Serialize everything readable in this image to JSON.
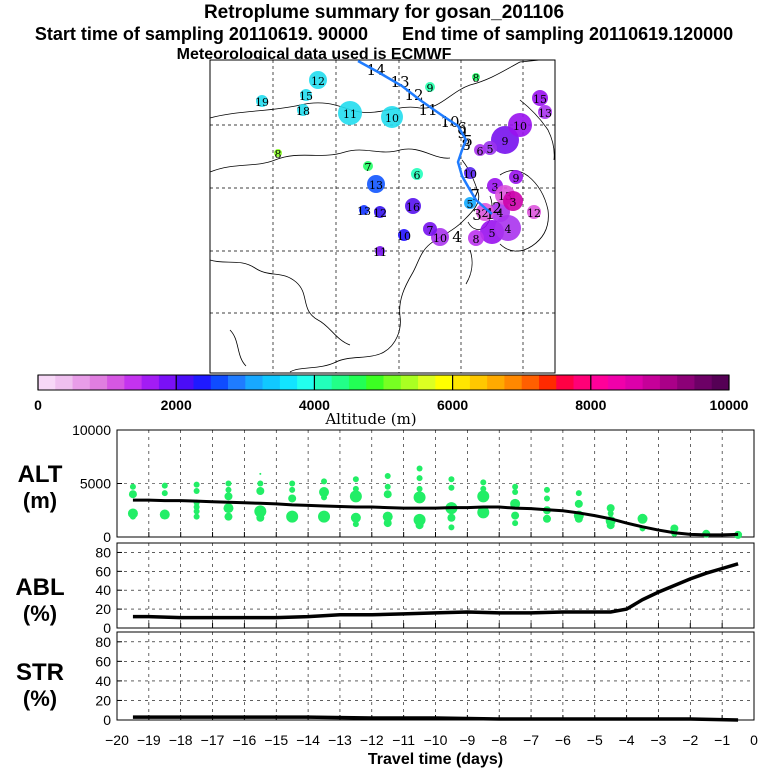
{
  "header": {
    "title": "Retroplume summary for gosan_201106",
    "start_label": "Start time of sampling 20110619. 90000",
    "end_label": "End time of sampling 20110619.120000",
    "met_label": "Meteorological data used is ECMWF"
  },
  "colorbar": {
    "label": "Altitude (m)",
    "ticks": [
      "0",
      "2000",
      "4000",
      "6000",
      "8000",
      "10000"
    ],
    "colors": [
      "#f7d8f7",
      "#efc0ef",
      "#e89de8",
      "#e07ee0",
      "#d657e3",
      "#c433ef",
      "#a31cf4",
      "#7a10f7",
      "#4b0df7",
      "#1f1aff",
      "#0f4cff",
      "#1f7cff",
      "#18a8ff",
      "#11c8ff",
      "#12e4ff",
      "#22ffee",
      "#22ffbb",
      "#22ff88",
      "#22ff55",
      "#3cff22",
      "#77ff22",
      "#aaff22",
      "#ddff22",
      "#ffff00",
      "#ffe600",
      "#ffc800",
      "#ffaa00",
      "#ff8800",
      "#ff5f00",
      "#ff2a00",
      "#ff0044",
      "#ff0077",
      "#ff0099",
      "#f000aa",
      "#dd00aa",
      "#c60099",
      "#aa0088",
      "#8c0077",
      "#6d0066",
      "#550055"
    ]
  },
  "map": {
    "labels": [
      {
        "t": "14",
        "c": "#000000",
        "s": 0
      },
      {
        "t": "13",
        "c": "#000000",
        "s": 0
      },
      {
        "t": "12",
        "c": "#000000",
        "s": 0
      },
      {
        "t": "11",
        "c": "#000000",
        "s": 0
      },
      {
        "t": "10",
        "c": "#000000",
        "s": 0
      },
      {
        "t": "9",
        "c": "#000000",
        "s": 0
      },
      {
        "t": "8",
        "c": "#000000",
        "s": 0
      },
      {
        "t": "12",
        "c": "#22ddee",
        "s": 1
      },
      {
        "t": "15",
        "c": "#22ddee",
        "s": 1
      },
      {
        "t": "19",
        "c": "#22ddee",
        "s": 1
      },
      {
        "t": "18",
        "c": "#22ddee",
        "s": 1
      },
      {
        "t": "11",
        "c": "#22ddee",
        "s": 1
      },
      {
        "t": "10",
        "c": "#22ddee",
        "s": 1
      },
      {
        "t": "9",
        "c": "#22ffaa",
        "s": 1
      },
      {
        "t": "8",
        "c": "#22ff66",
        "s": 1
      },
      {
        "t": "8",
        "c": "#88ff22",
        "s": 1
      },
      {
        "t": "7",
        "c": "#22ff66",
        "s": 1
      },
      {
        "t": "6",
        "c": "#22ffbb",
        "s": 1
      },
      {
        "t": "13",
        "c": "#1155ff",
        "s": 1
      },
      {
        "t": "13",
        "c": "#1133ff",
        "s": 1
      },
      {
        "t": "12",
        "c": "#3311ee",
        "s": 1
      },
      {
        "t": "16",
        "c": "#5511ee",
        "s": 1
      },
      {
        "t": "10",
        "c": "#2211ff",
        "s": 1
      },
      {
        "t": "11",
        "c": "#7711ee",
        "s": 1
      },
      {
        "t": "10",
        "c": "#aa33ee",
        "s": 1
      },
      {
        "t": "7",
        "c": "#7711ee",
        "s": 1
      },
      {
        "t": "5",
        "c": "#11aaff",
        "s": 1
      },
      {
        "t": "3",
        "c": "#9911ee",
        "s": 1
      },
      {
        "t": "4",
        "c": "#aa33ee",
        "s": 1
      },
      {
        "t": "5",
        "c": "#9911ee",
        "s": 1
      },
      {
        "t": "9",
        "c": "#7711ee",
        "s": 1
      },
      {
        "t": "10",
        "c": "#9911ee",
        "s": 1
      },
      {
        "t": "13",
        "c": "#dd55dd",
        "s": 1
      },
      {
        "t": "3",
        "c": "#cc00aa",
        "s": 1
      },
      {
        "t": "12",
        "c": "#dd55dd",
        "s": 1
      },
      {
        "t": "4",
        "c": "#aa33ee",
        "s": 1
      },
      {
        "t": "8",
        "c": "#bb33ee",
        "s": 1
      },
      {
        "t": "5",
        "c": "#9933ee",
        "s": 1
      },
      {
        "t": "6",
        "c": "#aa33ee",
        "s": 1
      },
      {
        "t": "9",
        "c": "#9911ee",
        "s": 1
      },
      {
        "t": "10",
        "c": "#5522ee",
        "s": 1
      },
      {
        "t": "15",
        "c": "#9911ee",
        "s": 1
      },
      {
        "t": "13",
        "c": "#aa33ee",
        "s": 1
      },
      {
        "t": "2",
        "c": "#dd55dd",
        "s": 1
      },
      {
        "t": "1",
        "c": "#000000",
        "s": 0
      },
      {
        "t": "7",
        "c": "#000000",
        "s": 0
      },
      {
        "t": "5",
        "c": "#000000",
        "s": 0
      },
      {
        "t": "6",
        "c": "#000000",
        "s": 0
      },
      {
        "t": "4",
        "c": "#000000",
        "s": 0
      },
      {
        "t": "3",
        "c": "#000000",
        "s": 0
      },
      {
        "t": "2",
        "c": "#000000",
        "s": 0
      }
    ]
  },
  "chart_data": [
    {
      "type": "scatter",
      "name": "ALT",
      "ylabel": "ALT (m)",
      "ylim": [
        0,
        10000
      ],
      "yticks": [
        0,
        5000,
        10000
      ],
      "xlim": [
        -20,
        0
      ],
      "line": {
        "x": [
          -19.5,
          -19,
          -18.5,
          -18,
          -17.5,
          -17,
          -16.5,
          -16,
          -15.5,
          -15,
          -14.5,
          -14,
          -13.5,
          -13,
          -12.5,
          -12,
          -11.5,
          -11,
          -10.5,
          -10,
          -9.5,
          -9,
          -8.5,
          -8,
          -7.5,
          -7,
          -6.5,
          -6,
          -5.5,
          -5,
          -4.5,
          -4,
          -3.5,
          -3,
          -2.5,
          -2,
          -1.5,
          -1,
          -0.5
        ],
        "y": [
          3450,
          3450,
          3400,
          3400,
          3350,
          3300,
          3250,
          3200,
          3150,
          3100,
          3000,
          2950,
          2900,
          2850,
          2800,
          2800,
          2750,
          2700,
          2700,
          2700,
          2750,
          2750,
          2800,
          2800,
          2700,
          2650,
          2550,
          2450,
          2250,
          2000,
          1700,
          1300,
          950,
          650,
          400,
          250,
          200,
          200,
          250
        ]
      },
      "points": [
        {
          "x": -19.5,
          "y": 4700,
          "r": 3
        },
        {
          "x": -19.5,
          "y": 4000,
          "r": 4
        },
        {
          "x": -19.5,
          "y": 2200,
          "r": 5
        },
        {
          "x": -19.5,
          "y": 1900,
          "r": 3
        },
        {
          "x": -18.5,
          "y": 4800,
          "r": 3
        },
        {
          "x": -18.5,
          "y": 4100,
          "r": 3
        },
        {
          "x": -18.5,
          "y": 2100,
          "r": 5
        },
        {
          "x": -17.5,
          "y": 4900,
          "r": 3
        },
        {
          "x": -17.5,
          "y": 4300,
          "r": 3
        },
        {
          "x": -17.5,
          "y": 3200,
          "r": 3
        },
        {
          "x": -17.5,
          "y": 2800,
          "r": 3
        },
        {
          "x": -17.5,
          "y": 2400,
          "r": 3
        },
        {
          "x": -17.5,
          "y": 1900,
          "r": 3
        },
        {
          "x": -16.5,
          "y": 5000,
          "r": 3
        },
        {
          "x": -16.5,
          "y": 4400,
          "r": 3
        },
        {
          "x": -16.5,
          "y": 3800,
          "r": 4
        },
        {
          "x": -16.5,
          "y": 2700,
          "r": 5
        },
        {
          "x": -16.5,
          "y": 1900,
          "r": 4
        },
        {
          "x": -15.5,
          "y": 5900,
          "r": 1
        },
        {
          "x": -15.5,
          "y": 5000,
          "r": 3
        },
        {
          "x": -15.5,
          "y": 4300,
          "r": 4
        },
        {
          "x": -15.5,
          "y": 2400,
          "r": 6
        },
        {
          "x": -15.5,
          "y": 1800,
          "r": 4
        },
        {
          "x": -14.5,
          "y": 5000,
          "r": 3
        },
        {
          "x": -14.5,
          "y": 4400,
          "r": 3
        },
        {
          "x": -14.5,
          "y": 3600,
          "r": 4
        },
        {
          "x": -14.5,
          "y": 1900,
          "r": 6
        },
        {
          "x": -13.5,
          "y": 5200,
          "r": 3
        },
        {
          "x": -13.5,
          "y": 4200,
          "r": 5
        },
        {
          "x": -13.5,
          "y": 3700,
          "r": 3
        },
        {
          "x": -13.5,
          "y": 1900,
          "r": 6
        },
        {
          "x": -12.5,
          "y": 5400,
          "r": 3
        },
        {
          "x": -12.5,
          "y": 4500,
          "r": 3
        },
        {
          "x": -12.5,
          "y": 3800,
          "r": 6
        },
        {
          "x": -12.5,
          "y": 1800,
          "r": 5
        },
        {
          "x": -12.5,
          "y": 1200,
          "r": 3
        },
        {
          "x": -11.5,
          "y": 5700,
          "r": 3
        },
        {
          "x": -11.5,
          "y": 4700,
          "r": 3
        },
        {
          "x": -11.5,
          "y": 4000,
          "r": 4
        },
        {
          "x": -11.5,
          "y": 1900,
          "r": 5
        },
        {
          "x": -11.5,
          "y": 1300,
          "r": 4
        },
        {
          "x": -10.5,
          "y": 6400,
          "r": 3
        },
        {
          "x": -10.5,
          "y": 5500,
          "r": 3
        },
        {
          "x": -10.5,
          "y": 4500,
          "r": 3
        },
        {
          "x": -10.5,
          "y": 3700,
          "r": 6
        },
        {
          "x": -10.5,
          "y": 1600,
          "r": 6
        },
        {
          "x": -10.5,
          "y": 1100,
          "r": 4
        },
        {
          "x": -9.5,
          "y": 5400,
          "r": 3
        },
        {
          "x": -9.5,
          "y": 4600,
          "r": 3
        },
        {
          "x": -9.5,
          "y": 2700,
          "r": 6
        },
        {
          "x": -9.5,
          "y": 1800,
          "r": 4
        },
        {
          "x": -9.5,
          "y": 900,
          "r": 3
        },
        {
          "x": -8.5,
          "y": 5100,
          "r": 3
        },
        {
          "x": -8.5,
          "y": 4500,
          "r": 3
        },
        {
          "x": -8.5,
          "y": 3800,
          "r": 6
        },
        {
          "x": -8.5,
          "y": 2300,
          "r": 6
        },
        {
          "x": -7.5,
          "y": 4700,
          "r": 3
        },
        {
          "x": -7.5,
          "y": 4200,
          "r": 3
        },
        {
          "x": -7.5,
          "y": 3100,
          "r": 5
        },
        {
          "x": -7.5,
          "y": 2000,
          "r": 4
        },
        {
          "x": -7.5,
          "y": 1300,
          "r": 3
        },
        {
          "x": -6.5,
          "y": 4400,
          "r": 3
        },
        {
          "x": -6.5,
          "y": 3600,
          "r": 3
        },
        {
          "x": -6.5,
          "y": 2500,
          "r": 4
        },
        {
          "x": -6.5,
          "y": 1700,
          "r": 4
        },
        {
          "x": -5.5,
          "y": 4100,
          "r": 3
        },
        {
          "x": -5.5,
          "y": 3100,
          "r": 4
        },
        {
          "x": -5.5,
          "y": 2000,
          "r": 5
        },
        {
          "x": -5.5,
          "y": 1700,
          "r": 4
        },
        {
          "x": -4.5,
          "y": 2700,
          "r": 4
        },
        {
          "x": -4.5,
          "y": 2200,
          "r": 3
        },
        {
          "x": -4.5,
          "y": 1500,
          "r": 5
        },
        {
          "x": -4.5,
          "y": 1100,
          "r": 4
        },
        {
          "x": -3.5,
          "y": 1700,
          "r": 5
        },
        {
          "x": -3.5,
          "y": 800,
          "r": 3
        },
        {
          "x": -2.5,
          "y": 800,
          "r": 4
        },
        {
          "x": -2.5,
          "y": 300,
          "r": 3
        },
        {
          "x": -1.5,
          "y": 300,
          "r": 4
        },
        {
          "x": -0.5,
          "y": 200,
          "r": 4
        }
      ]
    },
    {
      "type": "line",
      "name": "ABL",
      "ylabel": "ABL (%)",
      "ylim": [
        0,
        90
      ],
      "yticks": [
        0,
        20,
        40,
        60,
        80
      ],
      "xlim": [
        -20,
        0
      ],
      "x": [
        -19.5,
        -19,
        -18,
        -17,
        -16,
        -15,
        -14,
        -13,
        -12,
        -11,
        -10,
        -9,
        -8,
        -7,
        -6,
        -5,
        -4.5,
        -4,
        -3.5,
        -3,
        -2.5,
        -2,
        -1.5,
        -1,
        -0.5
      ],
      "y": [
        12,
        12,
        11,
        11,
        11,
        11,
        12,
        14,
        14,
        15,
        16,
        17,
        16,
        16,
        17,
        17,
        17,
        20,
        30,
        38,
        45,
        52,
        58,
        63,
        68
      ]
    },
    {
      "type": "line",
      "name": "STR",
      "ylabel": "STR (%)",
      "ylim": [
        0,
        90
      ],
      "yticks": [
        0,
        20,
        40,
        60,
        80
      ],
      "xlim": [
        -20,
        0
      ],
      "xlabel": "Travel time (days)",
      "xticks": [
        -20,
        -19,
        -18,
        -17,
        -16,
        -15,
        -14,
        -13,
        -12,
        -11,
        -10,
        -9,
        -8,
        -7,
        -6,
        -5,
        -4,
        -3,
        -2,
        -1,
        0
      ],
      "xticklabels": [
        "−20",
        "−19",
        "−18",
        "−17",
        "−16",
        "−15",
        "−14",
        "−13",
        "−12",
        "−11",
        "−10",
        "−9",
        "−8",
        "−7",
        "−6",
        "−5",
        "−4",
        "−3",
        "−2",
        "−1",
        "0"
      ],
      "x": [
        -19.5,
        -18,
        -16,
        -14,
        -12,
        -10,
        -8,
        -6,
        -4,
        -2,
        -0.5
      ],
      "y": [
        3,
        3,
        3,
        3,
        2,
        2,
        1,
        1,
        1,
        1,
        0
      ]
    }
  ]
}
